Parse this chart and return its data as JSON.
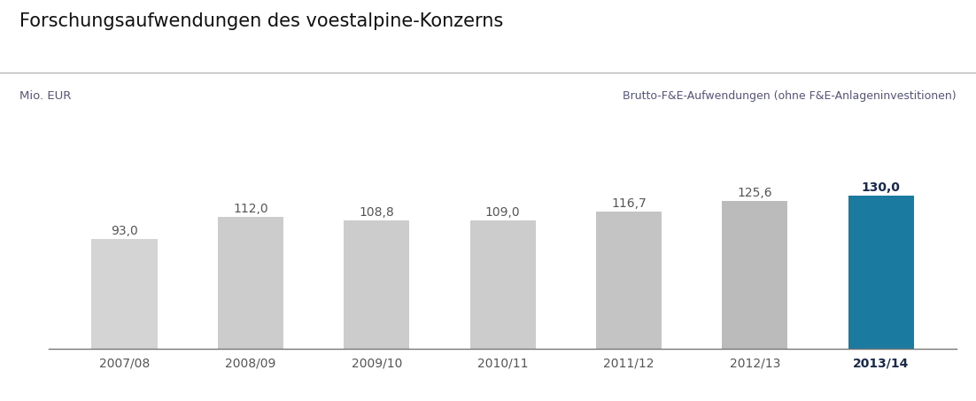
{
  "title": "Forschungsaufwendungen des voestalpine-Konzerns",
  "ylabel": "Mio. EUR",
  "legend_label": "Brutto-F&E-Aufwendungen (ohne F&E-Anlageninvestitionen)",
  "categories": [
    "2007/08",
    "2008/09",
    "2009/10",
    "2010/11",
    "2011/12",
    "2012/13",
    "2013/14"
  ],
  "values": [
    93.0,
    112.0,
    108.8,
    109.0,
    116.7,
    125.6,
    130.0
  ],
  "bar_colors": [
    "#d4d4d4",
    "#cccccc",
    "#cccccc",
    "#cccccc",
    "#c4c4c4",
    "#bbbbbb",
    "#1a7aa0"
  ],
  "value_labels": [
    "93,0",
    "112,0",
    "108,8",
    "109,0",
    "116,7",
    "125,6",
    "130,0"
  ],
  "highlight_index": 6,
  "title_fontsize": 15,
  "label_fontsize": 10,
  "tick_fontsize": 10,
  "ylabel_fontsize": 9.5,
  "legend_fontsize": 9,
  "bar_width": 0.52,
  "ylim": [
    0,
    170
  ],
  "background_color": "#ffffff",
  "text_color": "#555555",
  "highlight_text_color": "#1a2a4a",
  "axis_line_color": "#777777",
  "title_color": "#111111",
  "mio_eur_color": "#555577",
  "legend_color": "#555577"
}
